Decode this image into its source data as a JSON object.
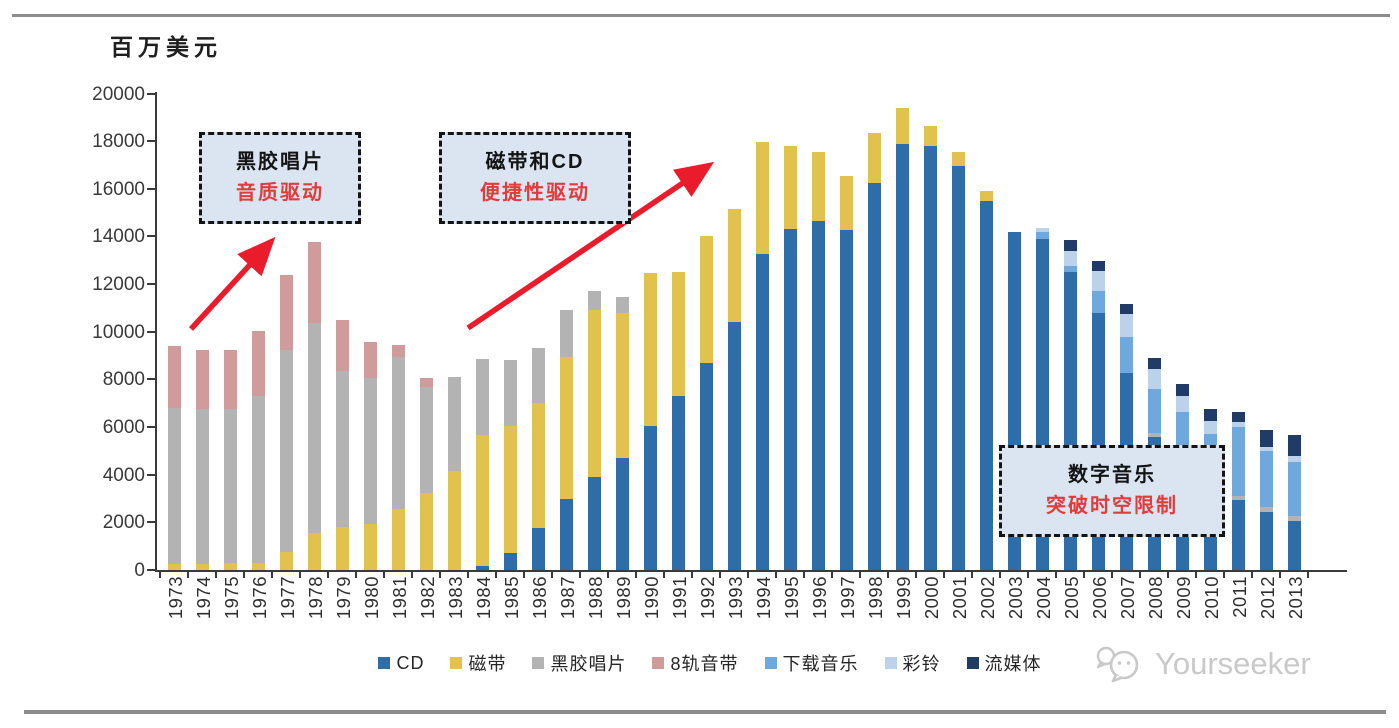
{
  "page": {
    "watermark_text": "Yourseeker"
  },
  "annotations": [
    {
      "title": "黑胶唱片",
      "subtitle": "音质驱动"
    },
    {
      "title": "磁带和CD",
      "subtitle": "便捷性驱动"
    },
    {
      "title": "数字音乐",
      "subtitle": "突破时空限制"
    }
  ],
  "chart_data": {
    "type": "bar",
    "stacked": true,
    "title": "",
    "xlabel": "",
    "ylabel": "百万美元",
    "ylim": [
      0,
      20000
    ],
    "ytick_step": 2000,
    "grid": false,
    "legend_position": "bottom",
    "years": [
      1973,
      1974,
      1975,
      1976,
      1977,
      1978,
      1979,
      1980,
      1981,
      1982,
      1983,
      1984,
      1985,
      1986,
      1987,
      1988,
      1989,
      1990,
      1991,
      1992,
      1993,
      1994,
      1995,
      1996,
      1997,
      1998,
      1999,
      2000,
      2001,
      2002,
      2003,
      2004,
      2005,
      2006,
      2007,
      2008,
      2009,
      2010,
      2011,
      2012,
      2013
    ],
    "series": [
      {
        "name": "CD",
        "color": "#2e6da8",
        "values": [
          0,
          0,
          0,
          0,
          0,
          0,
          0,
          0,
          0,
          0,
          0,
          150,
          700,
          1750,
          3000,
          3900,
          4700,
          6050,
          7300,
          8700,
          10400,
          13250,
          14300,
          14650,
          14250,
          16250,
          17900,
          17800,
          16950,
          15500,
          14200,
          13900,
          12500,
          10800,
          8250,
          5600,
          5050,
          3800,
          2950,
          2450,
          2050
        ]
      },
      {
        "name": "磁带",
        "color": "#e2c24f",
        "values": [
          250,
          250,
          300,
          300,
          750,
          1550,
          1800,
          1950,
          2550,
          3250,
          4150,
          5500,
          5350,
          5250,
          5950,
          7000,
          6100,
          6400,
          5200,
          5300,
          4750,
          4700,
          3500,
          2900,
          2300,
          2100,
          1500,
          850,
          600,
          400,
          0,
          0,
          0,
          0,
          0,
          0,
          0,
          0,
          0,
          0,
          0
        ]
      },
      {
        "name": "黑胶唱片",
        "color": "#b3b3b3",
        "values": [
          6550,
          6500,
          6450,
          7000,
          8500,
          8800,
          6550,
          6100,
          6400,
          4450,
          3950,
          3200,
          2750,
          2300,
          1950,
          800,
          650,
          0,
          0,
          0,
          0,
          0,
          0,
          0,
          0,
          0,
          0,
          0,
          0,
          0,
          0,
          0,
          0,
          0,
          0,
          150,
          0,
          0,
          150,
          200,
          200
        ]
      },
      {
        "name": "8轨音带",
        "color": "#d09b9b",
        "values": [
          2600,
          2500,
          2500,
          2750,
          3150,
          3400,
          2150,
          1500,
          500,
          350,
          0,
          0,
          0,
          0,
          0,
          0,
          0,
          0,
          0,
          0,
          0,
          0,
          0,
          0,
          0,
          0,
          0,
          0,
          0,
          0,
          0,
          0,
          0,
          0,
          0,
          0,
          0,
          0,
          0,
          0,
          0
        ]
      },
      {
        "name": "下载音乐",
        "color": "#6fa8dc",
        "values": [
          0,
          0,
          0,
          0,
          0,
          0,
          0,
          0,
          0,
          0,
          0,
          0,
          0,
          0,
          0,
          0,
          0,
          0,
          0,
          0,
          0,
          0,
          0,
          0,
          0,
          0,
          0,
          0,
          0,
          0,
          0,
          300,
          250,
          900,
          1550,
          1850,
          1600,
          1900,
          2900,
          2350,
          2300
        ]
      },
      {
        "name": "彩铃",
        "color": "#bcd2ea",
        "values": [
          0,
          0,
          0,
          0,
          0,
          0,
          0,
          0,
          0,
          0,
          0,
          0,
          0,
          0,
          0,
          0,
          0,
          0,
          0,
          0,
          0,
          0,
          0,
          0,
          0,
          0,
          0,
          0,
          0,
          0,
          0,
          150,
          650,
          850,
          950,
          850,
          650,
          550,
          200,
          175,
          225
        ]
      },
      {
        "name": "流媒体",
        "color": "#1f3b66",
        "values": [
          0,
          0,
          0,
          0,
          0,
          0,
          0,
          0,
          0,
          0,
          0,
          0,
          0,
          0,
          0,
          0,
          0,
          0,
          0,
          0,
          0,
          0,
          0,
          0,
          0,
          0,
          0,
          0,
          0,
          0,
          0,
          0,
          450,
          400,
          400,
          450,
          500,
          490,
          450,
          700,
          900
        ]
      }
    ]
  }
}
